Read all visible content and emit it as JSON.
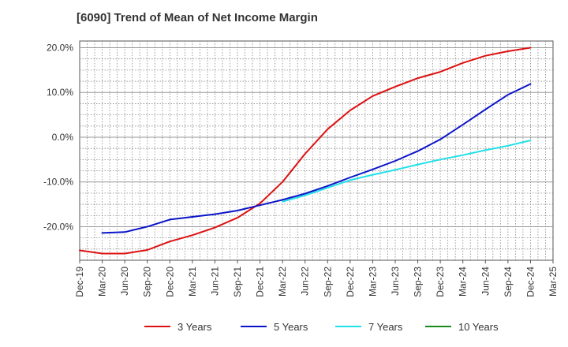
{
  "chart_data": {
    "type": "line",
    "title": "[6090]  Trend of Mean of Net Income Margin",
    "xlabel": "",
    "ylabel": "",
    "x_ticks": [
      "Dec-19",
      "Mar-20",
      "Jun-20",
      "Sep-20",
      "Dec-20",
      "Mar-21",
      "Jun-21",
      "Sep-21",
      "Dec-21",
      "Mar-22",
      "Jun-22",
      "Sep-22",
      "Dec-22",
      "Mar-23",
      "Jun-23",
      "Sep-23",
      "Dec-23",
      "Mar-24",
      "Jun-24",
      "Sep-24",
      "Dec-24",
      "Mar-25"
    ],
    "y_ticks": [
      20,
      10,
      0,
      -10,
      -20
    ],
    "y_tick_labels": [
      "20.0%",
      "10.0%",
      "0.0%",
      "-10.0%",
      "-20.0%"
    ],
    "ylim": [
      -27.5,
      21.5
    ],
    "grid": true,
    "legend_position": "bottom",
    "series": [
      {
        "name": "3 Years",
        "color": "#dd1111",
        "x": [
          "Dec-19",
          "Mar-20",
          "Jun-20",
          "Sep-20",
          "Dec-20",
          "Mar-21",
          "Jun-21",
          "Sep-21",
          "Dec-21",
          "Mar-22",
          "Jun-22",
          "Sep-22",
          "Dec-22",
          "Mar-23",
          "Jun-23",
          "Sep-23",
          "Dec-23",
          "Mar-24",
          "Jun-24",
          "Sep-24",
          "Dec-24"
        ],
        "values": [
          -25.3,
          -26.0,
          -26.0,
          -25.2,
          -23.3,
          -21.9,
          -20.2,
          -18.0,
          -14.8,
          -10.0,
          -3.7,
          1.8,
          6.0,
          9.2,
          11.3,
          13.2,
          14.6,
          16.6,
          18.2,
          19.2,
          20.0
        ]
      },
      {
        "name": "5 Years",
        "color": "#0a14c8",
        "x": [
          "Mar-20",
          "Jun-20",
          "Sep-20",
          "Dec-20",
          "Mar-21",
          "Jun-21",
          "Sep-21",
          "Dec-21",
          "Mar-22",
          "Jun-22",
          "Sep-22",
          "Dec-22",
          "Mar-23",
          "Jun-23",
          "Sep-23",
          "Dec-23",
          "Mar-24",
          "Jun-24",
          "Sep-24",
          "Dec-24"
        ],
        "values": [
          -21.4,
          -21.2,
          -20.0,
          -18.4,
          -17.8,
          -17.2,
          -16.4,
          -15.2,
          -14.0,
          -12.6,
          -10.9,
          -9.0,
          -7.2,
          -5.3,
          -3.1,
          -0.5,
          2.8,
          6.2,
          9.5,
          11.9
        ]
      },
      {
        "name": "7 Years",
        "color": "#22e0e8",
        "x": [
          "Mar-22",
          "Jun-22",
          "Sep-22",
          "Dec-22",
          "Mar-23",
          "Jun-23",
          "Sep-23",
          "Dec-23",
          "Mar-24",
          "Jun-24",
          "Sep-24",
          "Dec-24"
        ],
        "values": [
          -14.4,
          -13.0,
          -11.3,
          -9.6,
          -8.4,
          -7.3,
          -6.1,
          -5.0,
          -4.0,
          -2.9,
          -1.9,
          -0.7
        ]
      },
      {
        "name": "10 Years",
        "color": "#1a8a1a",
        "x": [],
        "values": []
      }
    ]
  }
}
